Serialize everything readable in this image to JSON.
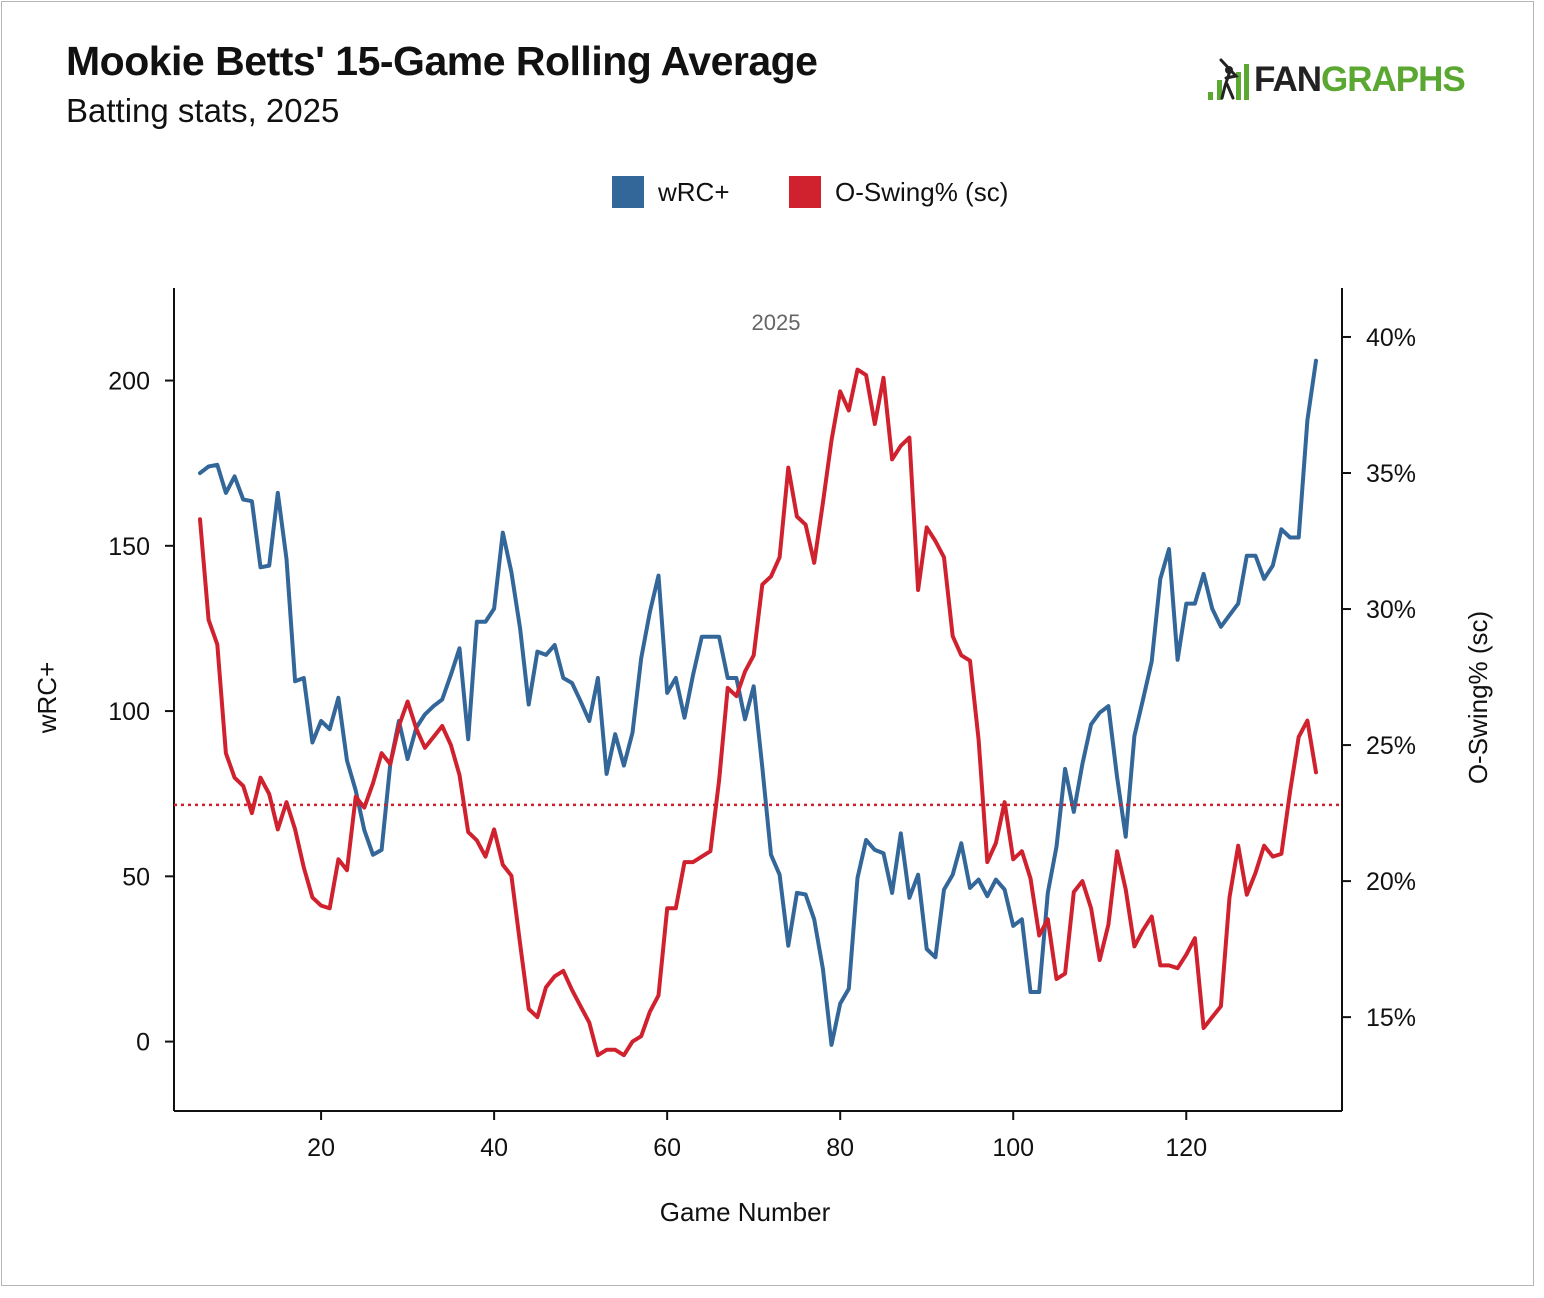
{
  "header": {
    "title": "Mookie Betts' 15-Game Rolling Average",
    "subtitle": "Batting stats, 2025"
  },
  "logo": {
    "part1": "FAN",
    "part2": "GRAPHS",
    "icon": "batter-bars-icon",
    "colors": {
      "fan": "#222222",
      "graphs": "#5aa832"
    }
  },
  "chart_data": {
    "type": "line",
    "title": "Mookie Betts' 15-Game Rolling Average",
    "subtitle": "Batting stats, 2025",
    "annotation": "2025",
    "xlabel": "Game Number",
    "ylabel_left": "wRC+",
    "ylabel_right": "O-Swing% (sc)",
    "xlim": [
      3,
      138
    ],
    "ylim_left": [
      -21,
      228
    ],
    "ylim_right": [
      0.1155,
      0.418
    ],
    "x_ticks": [
      20,
      40,
      60,
      80,
      100,
      120
    ],
    "x_tick_labels": [
      "20",
      "40",
      "60",
      "80",
      "100",
      "120"
    ],
    "y_left_ticks": [
      0,
      50,
      100,
      150,
      200
    ],
    "y_left_tick_labels": [
      "0",
      "50",
      "100",
      "150",
      "200"
    ],
    "y_right_ticks": [
      0.15,
      0.2,
      0.25,
      0.3,
      0.35,
      0.4
    ],
    "y_right_tick_labels": [
      "15%",
      "20%",
      "25%",
      "30%",
      "35%",
      "40%"
    ],
    "grid": false,
    "legend_position": "top-center",
    "reference_line": {
      "axis": "right",
      "value": 0.228,
      "style": "dotted",
      "color": "#d0212e"
    },
    "series": [
      {
        "name": "wRC+",
        "axis": "left",
        "color": "#336699",
        "x": [
          6,
          7,
          8,
          9,
          10,
          11,
          12,
          13,
          14,
          15,
          16,
          17,
          18,
          19,
          20,
          21,
          22,
          23,
          24,
          25,
          26,
          27,
          28,
          29,
          30,
          31,
          32,
          33,
          34,
          35,
          36,
          37,
          38,
          39,
          40,
          41,
          42,
          43,
          44,
          45,
          46,
          47,
          48,
          49,
          50,
          51,
          52,
          53,
          54,
          55,
          56,
          57,
          58,
          59,
          60,
          61,
          62,
          63,
          64,
          65,
          66,
          67,
          68,
          69,
          70,
          71,
          72,
          73,
          74,
          75,
          76,
          77,
          78,
          79,
          80,
          81,
          82,
          83,
          84,
          85,
          86,
          87,
          88,
          89,
          90,
          91,
          92,
          93,
          94,
          95,
          96,
          97,
          98,
          99,
          100,
          101,
          102,
          103,
          104,
          105,
          106,
          107,
          108,
          109,
          110,
          111,
          112,
          113,
          114,
          115,
          116,
          117,
          118,
          119,
          120,
          121,
          122,
          123,
          124,
          125,
          126,
          127,
          128,
          129,
          130,
          131,
          132,
          133,
          134,
          135
        ],
        "values": [
          172,
          174,
          174.5,
          166,
          171,
          164,
          163.5,
          143.5,
          144,
          166,
          146,
          109,
          110,
          90.5,
          97,
          94.5,
          104,
          85,
          76,
          64,
          56.5,
          58,
          84,
          97,
          85.5,
          95,
          99,
          101.5,
          103.5,
          111,
          119,
          91.5,
          127,
          127,
          131,
          154,
          142,
          125,
          102,
          118,
          117,
          120,
          110,
          108.5,
          103,
          97,
          110,
          81,
          93,
          83.5,
          93.5,
          116,
          130,
          141,
          105.5,
          110,
          98,
          111,
          122.5,
          122.5,
          122.5,
          110,
          110,
          97.5,
          107.5,
          83,
          56.5,
          50.5,
          29,
          45,
          44.5,
          37,
          22,
          -1,
          11.5,
          16,
          49.5,
          61,
          58,
          57,
          45,
          63,
          43.5,
          50.5,
          28,
          25.5,
          46,
          50.5,
          60,
          46.5,
          49,
          44,
          49,
          46,
          35,
          37,
          15,
          15,
          45,
          59,
          82.5,
          69.5,
          84,
          96,
          99.5,
          101.5,
          80,
          62,
          92.5,
          103.5,
          115,
          140,
          149,
          115.5,
          132.5,
          132.5,
          141.5,
          131,
          125.5,
          129,
          132.5,
          147,
          147,
          140,
          144,
          155,
          152.5,
          152.5,
          188,
          206
        ]
      },
      {
        "name": "O-Swing% (sc)",
        "axis": "right",
        "color": "#d0212e",
        "x": [
          6,
          7,
          8,
          9,
          10,
          11,
          12,
          13,
          14,
          15,
          16,
          17,
          18,
          19,
          20,
          21,
          22,
          23,
          24,
          25,
          26,
          27,
          28,
          29,
          30,
          31,
          32,
          33,
          34,
          35,
          36,
          37,
          38,
          39,
          40,
          41,
          42,
          43,
          44,
          45,
          46,
          47,
          48,
          49,
          50,
          51,
          52,
          53,
          54,
          55,
          56,
          57,
          58,
          59,
          60,
          61,
          62,
          63,
          64,
          65,
          66,
          67,
          68,
          69,
          70,
          71,
          72,
          73,
          74,
          75,
          76,
          77,
          78,
          79,
          80,
          81,
          82,
          83,
          84,
          85,
          86,
          87,
          88,
          89,
          90,
          91,
          92,
          93,
          94,
          95,
          96,
          97,
          98,
          99,
          100,
          101,
          102,
          103,
          104,
          105,
          106,
          107,
          108,
          109,
          110,
          111,
          112,
          113,
          114,
          115,
          116,
          117,
          118,
          119,
          120,
          121,
          122,
          123,
          124,
          125,
          126,
          127,
          128,
          129,
          130,
          131,
          132,
          133,
          134,
          135
        ],
        "values": [
          0.333,
          0.296,
          0.287,
          0.247,
          0.238,
          0.235,
          0.225,
          0.238,
          0.232,
          0.219,
          0.229,
          0.219,
          0.205,
          0.194,
          0.191,
          0.19,
          0.208,
          0.204,
          0.231,
          0.227,
          0.236,
          0.247,
          0.243,
          0.257,
          0.266,
          0.256,
          0.249,
          0.253,
          0.257,
          0.25,
          0.239,
          0.218,
          0.215,
          0.209,
          0.219,
          0.206,
          0.202,
          0.177,
          0.153,
          0.15,
          0.161,
          0.165,
          0.167,
          0.16,
          0.154,
          0.148,
          0.136,
          0.138,
          0.138,
          0.136,
          0.141,
          0.143,
          0.152,
          0.158,
          0.19,
          0.19,
          0.207,
          0.207,
          0.209,
          0.211,
          0.237,
          0.271,
          0.268,
          0.277,
          0.283,
          0.309,
          0.312,
          0.319,
          0.352,
          0.334,
          0.331,
          0.317,
          0.339,
          0.362,
          0.38,
          0.373,
          0.388,
          0.386,
          0.368,
          0.385,
          0.355,
          0.36,
          0.363,
          0.307,
          0.33,
          0.325,
          0.319,
          0.29,
          0.283,
          0.281,
          0.252,
          0.207,
          0.214,
          0.229,
          0.208,
          0.211,
          0.201,
          0.18,
          0.186,
          0.164,
          0.166,
          0.196,
          0.2,
          0.19,
          0.171,
          0.184,
          0.211,
          0.197,
          0.176,
          0.182,
          0.187,
          0.169,
          0.169,
          0.168,
          0.173,
          0.179,
          0.146,
          0.15,
          0.154,
          0.194,
          0.213,
          0.195,
          0.203,
          0.213,
          0.209,
          0.21,
          0.233,
          0.253,
          0.259,
          0.24
        ]
      }
    ]
  }
}
